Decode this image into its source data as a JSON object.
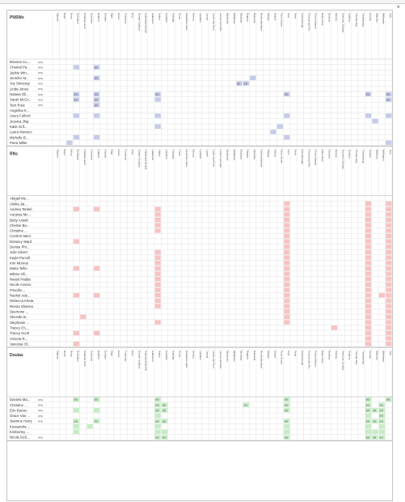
{
  "close_label": "×",
  "columns": [
    "Algoma",
    "Brant",
    "Bruce",
    "Burlington",
    "Chatham-Kent",
    "Cochrane",
    "Dufferin",
    "Durham",
    "Elgin",
    "Essex",
    "Frontenac",
    "Grey",
    "Greater Sudbury",
    "Haldimand-Norfolk",
    "Haliburton",
    "Halton",
    "Hamilton",
    "Hastings",
    "Huron",
    "Kawartha Lakes",
    "Kenora",
    "Lambton",
    "Lanark",
    "Leeds and Gren.",
    "Lennox and Add.",
    "Manitoulin",
    "Middlesex",
    "Muskoka",
    "Niagara",
    "Nipissing",
    "Northumberland",
    "Ottawa",
    "Oxford",
    "Parry Sound",
    "Peel",
    "Perth",
    "Peterborough",
    "Prescott and Ru..",
    "Prince Edward",
    "Rainy River",
    "Renfrew",
    "Simcoe",
    "Stormont, Dundas",
    "Sudbury",
    "Thunder Bay",
    "Timiskaming",
    "Toronto",
    "Waterloo",
    "Wellington",
    "York"
  ],
  "colors": {
    "pnsw": "#c5cbe8",
    "rn": "#f6c3c3",
    "doula": "#c6ecc6",
    "grid": "#dcdcdc",
    "header_bg": "#ffffff"
  },
  "sections": [
    {
      "title": "PNSWs",
      "color_key": "pnsw",
      "rows": [
        {
          "name": "Brianna Cu...",
          "tag": "(PS)",
          "cells": []
        },
        {
          "name": "Chantal Pa...",
          "tag": "(PS)",
          "cells": [
            [
              3,
              ""
            ],
            [
              6,
              "(H)"
            ]
          ]
        },
        {
          "name": "Jackie Win...",
          "tag": "(PS)",
          "cells": []
        },
        {
          "name": "Jennifer M...",
          "tag": "(PS)",
          "cells": [
            [
              6,
              "(H)"
            ],
            [
              29,
              ""
            ]
          ]
        },
        {
          "name": "Joy Strixengi",
          "tag": "(PS)",
          "cells": [
            [
              27,
              "(H)"
            ],
            [
              28,
              "(H)"
            ]
          ]
        },
        {
          "name": "Linda Jones",
          "tag": "(PS)",
          "cells": []
        },
        {
          "name": "Natasa Oli...",
          "tag": "(PS)",
          "cells": [
            [
              3,
              "(H)"
            ],
            [
              6,
              "(H)"
            ],
            [
              15,
              "(H)"
            ],
            [
              34,
              "(H)"
            ],
            [
              46,
              "(H)"
            ],
            [
              49,
              "(H)"
            ]
          ]
        },
        {
          "name": "Sarah McGr...",
          "tag": "(PS)",
          "cells": [
            [
              3,
              "(H)"
            ],
            [
              6,
              "(H)"
            ],
            [
              15,
              ""
            ],
            [
              49,
              "(H)"
            ]
          ]
        },
        {
          "name": "Terri Rout",
          "tag": "(PS)",
          "cells": [
            [
              6,
              "(H)"
            ]
          ]
        },
        {
          "name": "Angelina K...",
          "tag": "",
          "cells": []
        },
        {
          "name": "Avery Fulford",
          "tag": "",
          "cells": [
            [
              3,
              ""
            ],
            [
              6,
              ""
            ],
            [
              15,
              ""
            ],
            [
              34,
              ""
            ],
            [
              46,
              ""
            ],
            [
              49,
              ""
            ]
          ]
        },
        {
          "name": "Jessica Jhaj",
          "tag": "",
          "cells": [
            [
              47,
              ""
            ]
          ]
        },
        {
          "name": "Katie Grif...",
          "tag": "",
          "cells": [
            [
              15,
              ""
            ],
            [
              33,
              ""
            ]
          ]
        },
        {
          "name": "Laura Monaco",
          "tag": "",
          "cells": [
            [
              32,
              ""
            ]
          ]
        },
        {
          "name": "Michelle B...",
          "tag": "",
          "cells": [
            [
              3,
              ""
            ],
            [
              6,
              ""
            ],
            [
              34,
              ""
            ]
          ]
        },
        {
          "name": "Petra Miller",
          "tag": "",
          "cells": [
            [
              2,
              ""
            ],
            [
              49,
              ""
            ]
          ]
        }
      ]
    },
    {
      "title": "RNs",
      "color_key": "rn",
      "rows": [
        {
          "name": "Abigail Me...",
          "tag": "",
          "cells": []
        },
        {
          "name": "Alisha Jai...",
          "tag": "",
          "cells": [
            [
              34,
              ""
            ],
            [
              46,
              ""
            ],
            [
              49,
              ""
            ]
          ]
        },
        {
          "name": "Andrea Tankel",
          "tag": "",
          "cells": [
            [
              3,
              ""
            ],
            [
              6,
              ""
            ],
            [
              15,
              ""
            ],
            [
              34,
              ""
            ],
            [
              46,
              ""
            ],
            [
              49,
              ""
            ]
          ]
        },
        {
          "name": "Aunjnya Mc...",
          "tag": "",
          "cells": [
            [
              15,
              ""
            ],
            [
              34,
              ""
            ],
            [
              46,
              ""
            ],
            [
              49,
              ""
            ]
          ]
        },
        {
          "name": "Betty Ansah",
          "tag": "",
          "cells": [
            [
              15,
              ""
            ],
            [
              34,
              ""
            ],
            [
              46,
              ""
            ],
            [
              49,
              ""
            ]
          ]
        },
        {
          "name": "Chelsie Ba...",
          "tag": "",
          "cells": [
            [
              15,
              ""
            ],
            [
              34,
              ""
            ],
            [
              46,
              ""
            ],
            [
              49,
              ""
            ]
          ]
        },
        {
          "name": "Christine ...",
          "tag": "",
          "cells": [
            [
              15,
              ""
            ],
            [
              34,
              ""
            ],
            [
              46,
              ""
            ],
            [
              49,
              ""
            ]
          ]
        },
        {
          "name": "Comfort Mani",
          "tag": "",
          "cells": [
            [
              34,
              ""
            ],
            [
              46,
              ""
            ],
            [
              49,
              ""
            ]
          ]
        },
        {
          "name": "Delaney Ward",
          "tag": "",
          "cells": [
            [
              3,
              ""
            ],
            [
              34,
              ""
            ],
            [
              46,
              ""
            ],
            [
              49,
              ""
            ]
          ]
        },
        {
          "name": "Denise Phi...",
          "tag": "",
          "cells": [
            [
              34,
              ""
            ],
            [
              46,
              ""
            ],
            [
              49,
              ""
            ]
          ]
        },
        {
          "name": "Julie Silvert",
          "tag": "",
          "cells": [
            [
              15,
              ""
            ],
            [
              34,
              ""
            ],
            [
              46,
              ""
            ],
            [
              49,
              ""
            ]
          ]
        },
        {
          "name": "Kayla Purcell",
          "tag": "",
          "cells": [
            [
              15,
              ""
            ],
            [
              34,
              ""
            ],
            [
              46,
              ""
            ],
            [
              49,
              ""
            ]
          ]
        },
        {
          "name": "Kim Munroe",
          "tag": "",
          "cells": [
            [
              15,
              ""
            ],
            [
              34,
              ""
            ],
            [
              46,
              ""
            ],
            [
              49,
              ""
            ]
          ]
        },
        {
          "name": "Maria Tellio",
          "tag": "",
          "cells": [
            [
              3,
              ""
            ],
            [
              6,
              ""
            ],
            [
              15,
              ""
            ],
            [
              34,
              ""
            ],
            [
              46,
              ""
            ],
            [
              49,
              ""
            ]
          ]
        },
        {
          "name": "Milene Oli...",
          "tag": "",
          "cells": [
            [
              15,
              ""
            ],
            [
              34,
              ""
            ],
            [
              46,
              ""
            ],
            [
              49,
              ""
            ]
          ]
        },
        {
          "name": "Navjot Padda",
          "tag": "",
          "cells": [
            [
              15,
              ""
            ],
            [
              34,
              ""
            ],
            [
              46,
              ""
            ],
            [
              49,
              ""
            ]
          ]
        },
        {
          "name": "Nicole Aranov",
          "tag": "",
          "cells": [
            [
              15,
              ""
            ],
            [
              34,
              ""
            ],
            [
              46,
              ""
            ],
            [
              49,
              ""
            ]
          ]
        },
        {
          "name": "Priscilla ...",
          "tag": "",
          "cells": [
            [
              15,
              ""
            ],
            [
              34,
              ""
            ],
            [
              46,
              ""
            ],
            [
              49,
              ""
            ]
          ]
        },
        {
          "name": "Rachel Ade...",
          "tag": "",
          "cells": [
            [
              3,
              ""
            ],
            [
              6,
              ""
            ],
            [
              15,
              ""
            ],
            [
              34,
              ""
            ],
            [
              46,
              ""
            ],
            [
              48,
              ""
            ],
            [
              49,
              ""
            ]
          ]
        },
        {
          "name": "Rebecca Kheta",
          "tag": "",
          "cells": [
            [
              15,
              ""
            ],
            [
              34,
              ""
            ],
            [
              46,
              ""
            ],
            [
              49,
              ""
            ]
          ]
        },
        {
          "name": "Reena Sharma",
          "tag": "",
          "cells": [
            [
              15,
              ""
            ],
            [
              34,
              ""
            ],
            [
              46,
              ""
            ],
            [
              49,
              ""
            ]
          ]
        },
        {
          "name": "Seemone ...",
          "tag": "",
          "cells": [
            [
              34,
              ""
            ],
            [
              46,
              ""
            ],
            [
              49,
              ""
            ]
          ]
        },
        {
          "name": "Sherelle B...",
          "tag": "",
          "cells": [
            [
              4,
              ""
            ],
            [
              34,
              ""
            ],
            [
              46,
              ""
            ],
            [
              49,
              ""
            ]
          ]
        },
        {
          "name": "Stephanie ...",
          "tag": "",
          "cells": [
            [
              15,
              ""
            ],
            [
              34,
              ""
            ],
            [
              46,
              ""
            ],
            [
              49,
              ""
            ]
          ]
        },
        {
          "name": "Tracey O'L...",
          "tag": "",
          "cells": [
            [
              41,
              ""
            ],
            [
              46,
              ""
            ],
            [
              49,
              ""
            ]
          ]
        },
        {
          "name": "Tracey Scott",
          "tag": "",
          "cells": [
            [
              3,
              ""
            ],
            [
              6,
              ""
            ],
            [
              46,
              ""
            ],
            [
              49,
              ""
            ]
          ]
        },
        {
          "name": "Victoria R...",
          "tag": "",
          "cells": [
            [
              46,
              ""
            ],
            [
              49,
              ""
            ]
          ]
        },
        {
          "name": "Vanessa Ol...",
          "tag": "",
          "cells": [
            [
              3,
              ""
            ],
            [
              46,
              ""
            ],
            [
              49,
              ""
            ]
          ]
        }
      ]
    },
    {
      "title": "Doulas",
      "color_key": "doula",
      "rows": [
        {
          "name": "Daniela Ma...",
          "tag": "(PS)",
          "cells": [
            [
              3,
              "(H)"
            ],
            [
              6,
              "(H)"
            ],
            [
              15,
              "(H)"
            ],
            [
              34,
              "(H)"
            ],
            [
              46,
              "(H)"
            ],
            [
              49,
              "(H)"
            ]
          ]
        },
        {
          "name": "Christine ...",
          "tag": "(PS)",
          "cells": [
            [
              15,
              "(H)"
            ],
            [
              16,
              "(H)"
            ],
            [
              28,
              "(H)"
            ],
            [
              34,
              "(H)"
            ],
            [
              46,
              "(H)"
            ],
            [
              48,
              "(H)"
            ]
          ]
        },
        {
          "name": "Erin Burton",
          "tag": "(PS)",
          "cells": [
            [
              3,
              ""
            ],
            [
              6,
              ""
            ],
            [
              15,
              "(H)"
            ],
            [
              16,
              "(H)"
            ],
            [
              34,
              "(H)"
            ],
            [
              46,
              "(H)"
            ],
            [
              47,
              "(H)"
            ],
            [
              48,
              "(H)"
            ]
          ]
        },
        {
          "name": "Grace Van ...",
          "tag": "(PS)",
          "cells": [
            [
              15,
              ""
            ],
            [
              46,
              ""
            ],
            [
              48,
              "(H)"
            ]
          ]
        },
        {
          "name": "Jasmine Harry",
          "tag": "(PS)",
          "cells": [
            [
              3,
              "(H)"
            ],
            [
              6,
              "(H)"
            ],
            [
              15,
              "(H)"
            ],
            [
              16,
              "(H)"
            ],
            [
              34,
              "(H)"
            ],
            [
              46,
              "(H)"
            ],
            [
              47,
              "(H)"
            ],
            [
              48,
              "(H)"
            ]
          ]
        },
        {
          "name": "Kessandra ...",
          "tag": "",
          "cells": [
            [
              3,
              ""
            ],
            [
              5,
              ""
            ],
            [
              15,
              ""
            ],
            [
              34,
              ""
            ],
            [
              46,
              ""
            ],
            [
              48,
              ""
            ]
          ]
        },
        {
          "name": "Kimberley ...",
          "tag": "",
          "cells": [
            [
              3,
              ""
            ],
            [
              15,
              ""
            ],
            [
              16,
              ""
            ],
            [
              34,
              ""
            ],
            [
              46,
              ""
            ],
            [
              47,
              ""
            ],
            [
              48,
              ""
            ]
          ]
        },
        {
          "name": "Nicole DeS...",
          "tag": "(PS)",
          "cells": [
            [
              15,
              "(H)"
            ],
            [
              16,
              "(H)"
            ],
            [
              34,
              "(H)"
            ],
            [
              46,
              "(H)"
            ],
            [
              47,
              "(H)"
            ],
            [
              48,
              "(H)"
            ]
          ]
        }
      ]
    }
  ]
}
